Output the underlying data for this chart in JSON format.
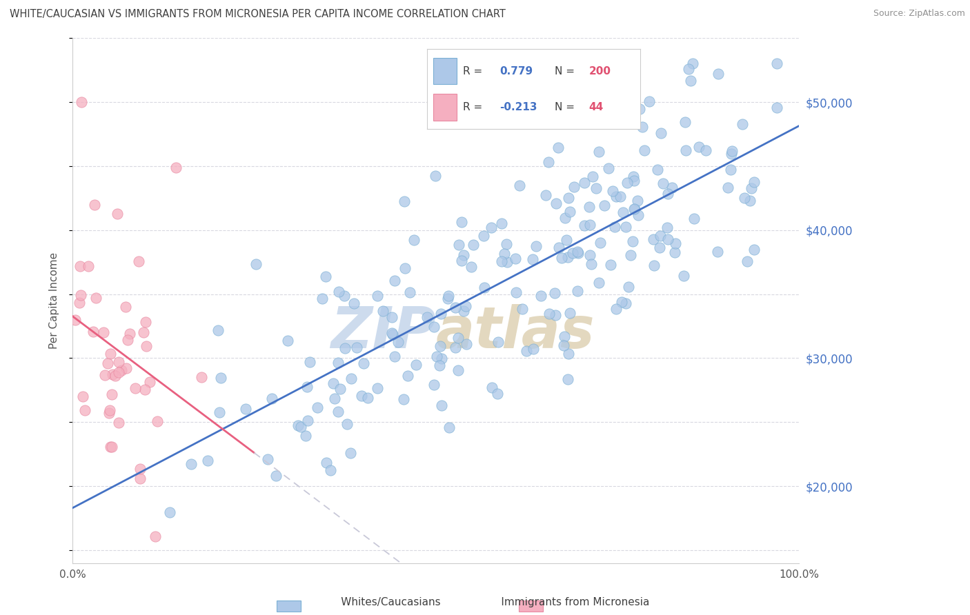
{
  "title": "WHITE/CAUCASIAN VS IMMIGRANTS FROM MICRONESIA PER CAPITA INCOME CORRELATION CHART",
  "source": "Source: ZipAtlas.com",
  "blue_label": "Whites/Caucasians",
  "pink_label": "Immigrants from Micronesia",
  "blue_R": 0.779,
  "blue_N": 200,
  "pink_R": -0.213,
  "pink_N": 44,
  "blue_color": "#adc8e8",
  "blue_edge_color": "#7aafd4",
  "pink_color": "#f5afc0",
  "pink_edge_color": "#e888a0",
  "blue_line_color": "#4472c4",
  "pink_line_color": "#e86080",
  "pink_dash_color": "#c8c8d8",
  "watermark_zip_color": "#b8c8dc",
  "watermark_atlas_color": "#d0c8b8",
  "background_color": "#ffffff",
  "grid_color": "#d8d8e0",
  "xlim": [
    0.0,
    1.0
  ],
  "ylim": [
    14000,
    55000
  ],
  "right_yticks": [
    20000,
    30000,
    40000,
    50000
  ],
  "ylabel": "Per Capita Income",
  "title_color": "#404040",
  "source_color": "#909090",
  "right_tick_color": "#4472c4",
  "legend_label_color": "#404040",
  "legend_val_color": "#4472c4",
  "legend_n_color": "#e05070",
  "seed": 42,
  "blue_dot_size": 120,
  "pink_dot_size": 120
}
